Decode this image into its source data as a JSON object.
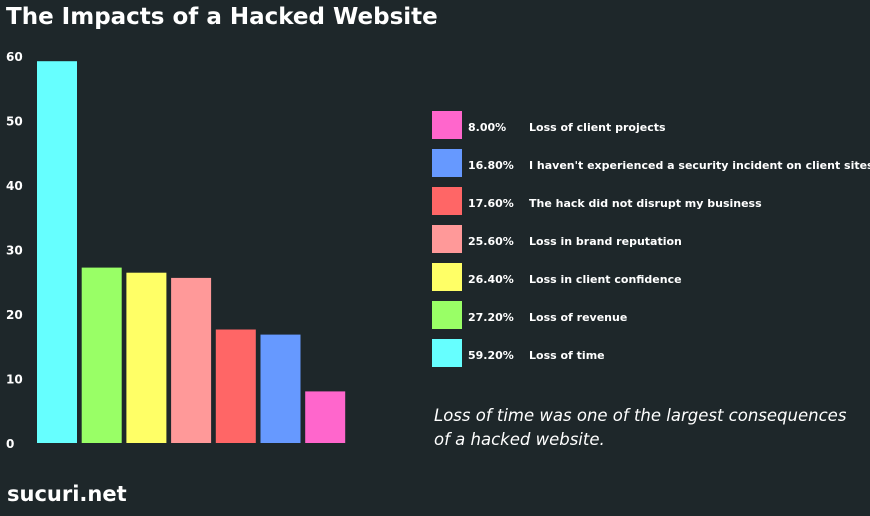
{
  "title": "The Impacts of a Hacked Website",
  "caption": "Loss of time was one of the largest consequences of a hacked website.",
  "footer_brand": "sucuri.net",
  "chart_data": {
    "type": "bar",
    "title": "The Impacts of a Hacked Website",
    "xlabel": "",
    "ylabel": "",
    "ylim": [
      0,
      60
    ],
    "yticks": [
      0,
      10,
      20,
      30,
      40,
      50,
      60
    ],
    "grid": false,
    "legend_position": "right",
    "categories": [
      "Loss of time",
      "Loss of revenue",
      "Loss in client confidence",
      "Loss in brand reputation",
      "The hack did not disrupt my business",
      "I haven't experienced a security incident on client sites",
      "Loss of client projects"
    ],
    "values": [
      59.2,
      27.2,
      26.4,
      25.6,
      17.6,
      16.8,
      8.0
    ],
    "colors": [
      "#66ffff",
      "#99ff66",
      "#ffff66",
      "#ff9999",
      "#ff6666",
      "#6699ff",
      "#ff66cc"
    ]
  },
  "legend": [
    {
      "value": "8.00%",
      "label": "Loss of client projects",
      "color": "#ff66cc"
    },
    {
      "value": "16.80%",
      "label": "I haven't experienced a security incident on client sites",
      "color": "#6699ff"
    },
    {
      "value": "17.60%",
      "label": "The hack did not disrupt my business",
      "color": "#ff6666"
    },
    {
      "value": "25.60%",
      "label": "Loss in brand reputation",
      "color": "#ff9999"
    },
    {
      "value": "26.40%",
      "label": "Loss in client confidence",
      "color": "#ffff66"
    },
    {
      "value": "27.20%",
      "label": "Loss of revenue",
      "color": "#99ff66"
    },
    {
      "value": "59.20%",
      "label": "Loss of time",
      "color": "#66ffff"
    }
  ]
}
